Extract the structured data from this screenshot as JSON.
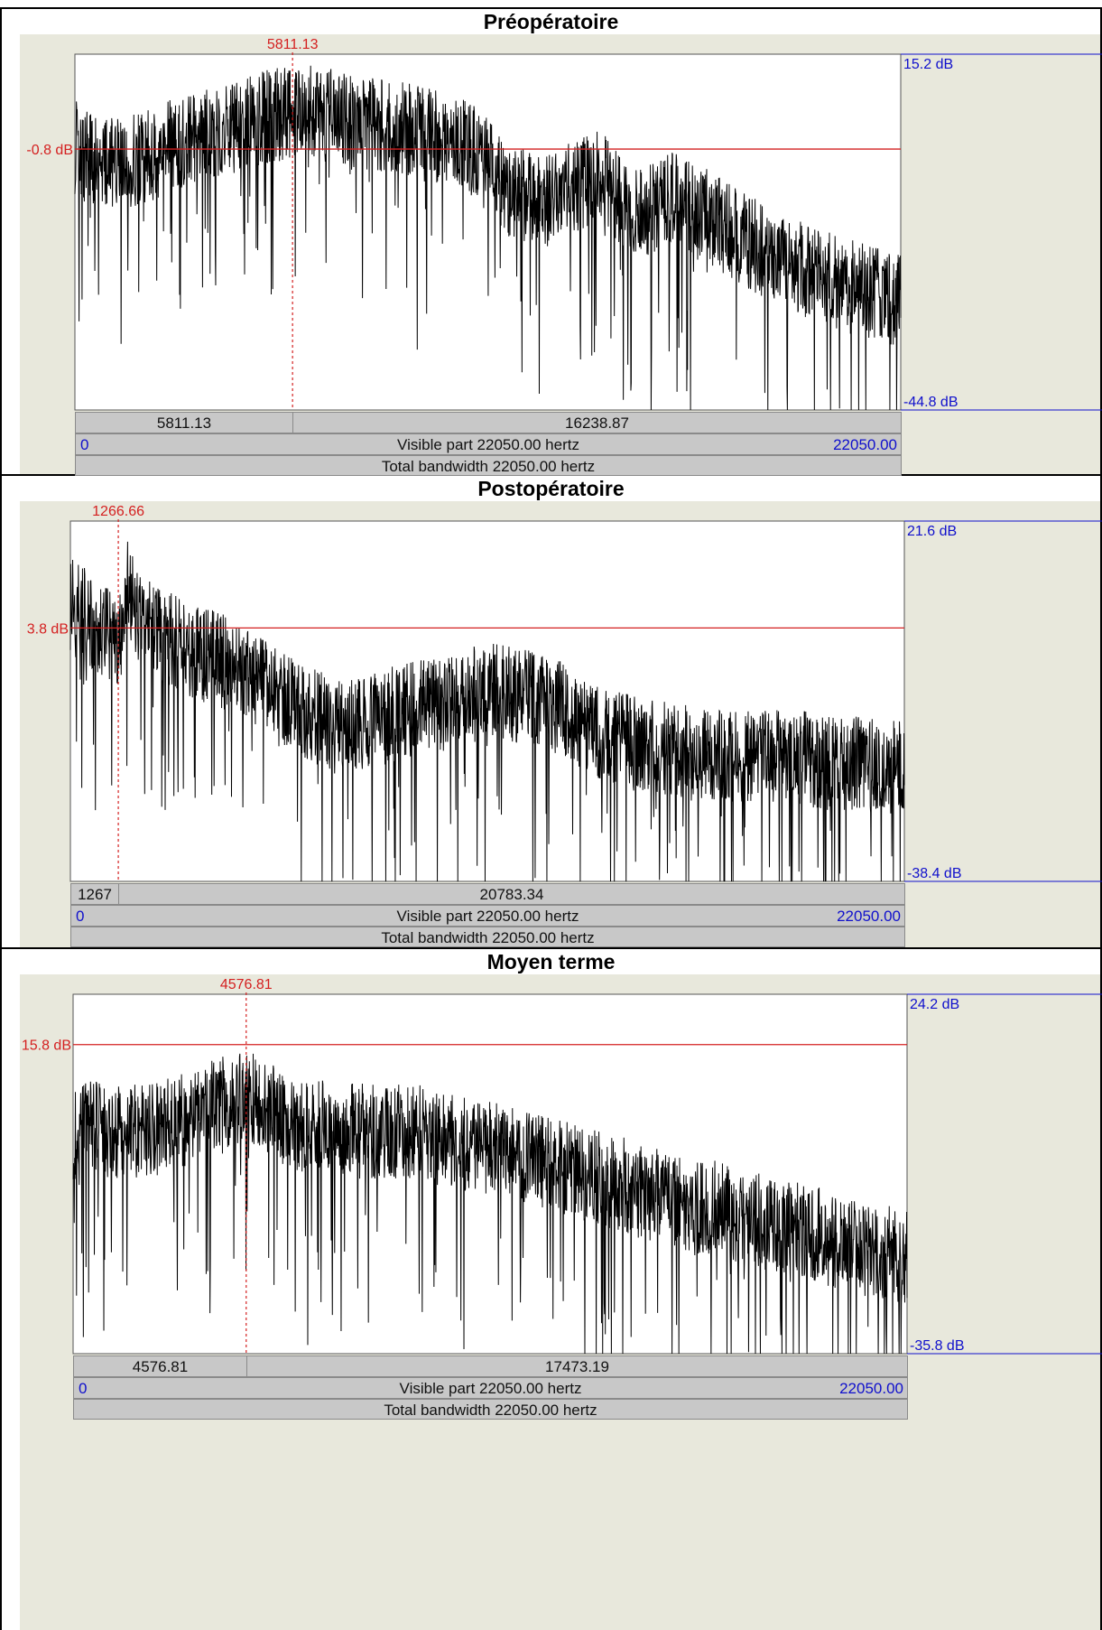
{
  "chart_data": [
    {
      "type": "line",
      "title": "Préopératoire",
      "x_unit": "hertz",
      "xlim": [
        0,
        22050
      ],
      "ylim": [
        -44.8,
        15.2
      ],
      "ylim_labels": [
        "15.2 dB",
        "-44.8 dB"
      ],
      "cursor": {
        "x": 5811.13,
        "label": "5811.13",
        "y": -0.8,
        "y_label": "-0.8 dB"
      },
      "segments": [
        "5811.13",
        "16238.87"
      ],
      "x_start_label": "0",
      "x_end_label": "22050.00",
      "visible_part": "Visible part 22050.00 hertz",
      "total_bandwidth": "Total bandwidth 22050.00 hertz",
      "envelope": {
        "x": [
          0,
          1000,
          2000,
          3000,
          4000,
          5000,
          5811,
          6500,
          7500,
          8500,
          9500,
          10500,
          11000,
          11500,
          12500,
          13500,
          14000,
          15000,
          16000,
          17000,
          18000,
          19000,
          20000,
          21000,
          22050
        ],
        "y": [
          -3,
          -6,
          -4,
          -2,
          0,
          2,
          3,
          3,
          1,
          1,
          -1,
          -3,
          -6,
          -10,
          -12,
          -9,
          -8,
          -14,
          -11,
          -15,
          -19,
          -22,
          -25,
          -27,
          -29
        ]
      }
    },
    {
      "type": "line",
      "title": "Postopératoire",
      "x_unit": "hertz",
      "xlim": [
        0,
        22050
      ],
      "ylim": [
        -38.4,
        21.6
      ],
      "ylim_labels": [
        "21.6 dB",
        "-38.4 dB"
      ],
      "cursor": {
        "x": 1266.66,
        "label": "1266.66",
        "y": 3.8,
        "y_label": "3.8 dB"
      },
      "segments": [
        "1267",
        "20783.34"
      ],
      "x_start_label": "0",
      "x_end_label": "22050.00",
      "visible_part": "Visible part 22050.00 hertz",
      "total_bandwidth": "Total bandwidth 22050.00 hertz",
      "envelope": {
        "x": [
          0,
          500,
          1000,
          1266,
          1500,
          2000,
          3000,
          4000,
          5000,
          6000,
          7000,
          8000,
          9000,
          10000,
          11000,
          12000,
          13000,
          14000,
          15000,
          16000,
          17000,
          18000,
          19000,
          20000,
          22050
        ],
        "y": [
          5,
          3,
          0,
          -2,
          8,
          2,
          -2,
          -4,
          -8,
          -12,
          -15,
          -14,
          -12,
          -11,
          -9,
          -10,
          -12,
          -16,
          -18,
          -19,
          -20,
          -20,
          -20,
          -21,
          -22
        ]
      }
    },
    {
      "type": "line",
      "title": "Moyen terme",
      "x_unit": "hertz",
      "xlim": [
        0,
        22050
      ],
      "ylim": [
        -35.8,
        24.2
      ],
      "ylim_labels": [
        "24.2 dB",
        "-35.8 dB"
      ],
      "cursor": {
        "x": 4576.81,
        "label": "4576.81",
        "y": 15.8,
        "y_label": "15.8 dB"
      },
      "segments": [
        "4576.81",
        "17473.19"
      ],
      "x_start_label": "0",
      "x_end_label": "22050.00",
      "visible_part": "Visible part 22050.00 hertz",
      "total_bandwidth": "Total bandwidth 22050.00 hertz",
      "envelope": {
        "x": [
          0,
          500,
          1000,
          2000,
          3000,
          4000,
          4576,
          5000,
          6000,
          7000,
          8000,
          9000,
          10000,
          11000,
          12000,
          13000,
          14000,
          15000,
          16000,
          17000,
          18000,
          19000,
          20000,
          21000,
          22050
        ],
        "y": [
          -2,
          0,
          -1,
          -1,
          1,
          4,
          5,
          3,
          0,
          -1,
          -1,
          -1,
          -3,
          -4,
          -5,
          -7,
          -9,
          -11,
          -13,
          -14,
          -16,
          -17,
          -19,
          -21,
          -22
        ]
      }
    }
  ]
}
